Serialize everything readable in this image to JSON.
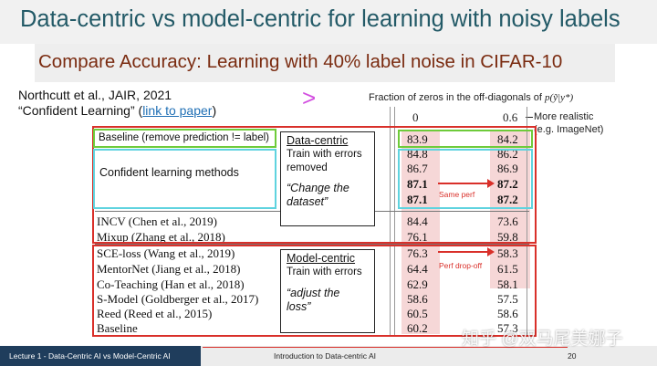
{
  "slide": {
    "title": "Data-centric vs model-centric for learning with noisy labels",
    "subtitle": "Compare Accuracy: Learning with 40% label noise in CIFAR-10",
    "citation_line1": "Northcutt et al., JAIR, 2021",
    "citation_line2_prefix": "“Confident Learning” (",
    "citation_link": "link to paper",
    "citation_line2_suffix": ")",
    "gt_symbol": ">"
  },
  "table": {
    "axis_caption": "Fraction of zeros in the off-diagonals of",
    "axis_formula": "p(ỹ|y*)",
    "col_headers": [
      "0",
      "0.6"
    ],
    "more_realistic": [
      "More realistic",
      "(e.g. ImageNet)"
    ],
    "rows": [
      {
        "label": "Baseline (remove prediction != label)",
        "v0": "83.9",
        "v1": "84.2"
      },
      {
        "label": "",
        "v0": "84.8",
        "v1": "86.2"
      },
      {
        "label": "",
        "v0": "86.7",
        "v1": "86.9"
      },
      {
        "label": "",
        "v0": "87.1",
        "v1": "87.2"
      },
      {
        "label": "",
        "v0": "87.1",
        "v1": "87.2"
      },
      {
        "label": "INCV (Chen et al., 2019)",
        "v0": "84.4",
        "v1": "73.6"
      },
      {
        "label": "Mixup (Zhang et al., 2018)",
        "v0": "76.1",
        "v1": "59.8"
      },
      {
        "label": "SCE-loss (Wang et al., 2019)",
        "v0": "76.3",
        "v1": "58.3"
      },
      {
        "label": "MentorNet (Jiang et al., 2018)",
        "v0": "64.4",
        "v1": "61.5"
      },
      {
        "label": "Co-Teaching (Han et al., 2018)",
        "v0": "62.9",
        "v1": "58.1"
      },
      {
        "label": "S-Model (Goldberger et al., 2017)",
        "v0": "58.6",
        "v1": "57.5"
      },
      {
        "label": "Reed (Reed et al., 2015)",
        "v0": "60.5",
        "v1": "58.6"
      },
      {
        "label": "Baseline",
        "v0": "60.2",
        "v1": "57.3"
      }
    ],
    "confident_label": "Confident learning methods"
  },
  "callouts": {
    "data_centric_title": "Data-centric",
    "data_centric_line1": "Train with errors",
    "data_centric_line2": "removed",
    "data_centric_quote1": "“Change the",
    "data_centric_quote2": "dataset”",
    "model_centric_title": "Model-centric",
    "model_centric_line1": "Train with errors",
    "model_centric_quote1": "“adjust the",
    "model_centric_quote2": "loss”",
    "same_perf": "Same perf",
    "perf_dropoff": "Perf drop-off"
  },
  "footer": {
    "left": "Lecture 1 - Data-Centric AI vs Model-Centric AI",
    "middle": "Introduction to Data-centric AI",
    "page": "20",
    "watermark": "知乎 @双马尾美娜子"
  },
  "colors": {
    "title": "#235a67",
    "subtitle": "#7a2b10",
    "highlight_red": "#d9302a",
    "highlight_green": "#6ecb3a",
    "highlight_cyan": "#5fd3df",
    "cell_pink": "#f6d7d7",
    "footer_dark": "#1f3d5c"
  }
}
